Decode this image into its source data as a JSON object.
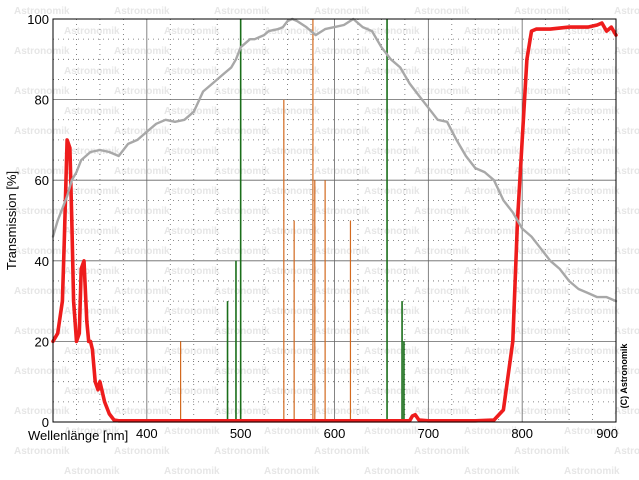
{
  "chart_data": {
    "type": "line",
    "title": "",
    "xlabel": "Wellenlänge [nm]",
    "ylabel": "Transmission [%]",
    "xlim": [
      300,
      900
    ],
    "ylim": [
      0,
      100
    ],
    "x_ticks": [
      400,
      500,
      600,
      700,
      800,
      900
    ],
    "y_ticks": [
      0,
      20,
      40,
      60,
      80,
      100
    ],
    "grid": true,
    "copyright": "(C) Astronomik",
    "watermark": "Astronomik",
    "colors": {
      "filter": "#ee1c1c",
      "sensor": "#a8a8a8",
      "green_lines": "#1a6e1a",
      "orange_lines": "#d2691e",
      "grid": "#666666"
    },
    "series": [
      {
        "key": "filter",
        "x": [
          300,
          305,
          310,
          312,
          315,
          318,
          320,
          322,
          325,
          328,
          330,
          333,
          336,
          338,
          340,
          342,
          345,
          348,
          350,
          355,
          360,
          365,
          370,
          375,
          378,
          380,
          382,
          385,
          388,
          390,
          392,
          395,
          400,
          450,
          500,
          550,
          600,
          650,
          680,
          683,
          686,
          690,
          700,
          750,
          770,
          780,
          790,
          795,
          800,
          805,
          810,
          815,
          820,
          830,
          850,
          870,
          880,
          885,
          890,
          895,
          900
        ],
        "y": [
          20,
          22,
          30,
          45,
          70,
          68,
          50,
          30,
          20,
          22,
          38,
          40,
          25,
          20,
          20,
          18,
          10,
          8,
          10,
          5,
          2,
          0.5,
          0.3,
          0.3,
          0.3,
          0.3,
          0.3,
          0.3,
          0.3,
          0.3,
          0.3,
          0.3,
          0.3,
          0.3,
          0.3,
          0.3,
          0.3,
          0.3,
          0.3,
          1.5,
          1.8,
          0.5,
          0.3,
          0.3,
          0.5,
          3,
          20,
          50,
          70,
          90,
          97,
          97.5,
          97.5,
          97.5,
          98,
          98,
          98.5,
          99,
          97,
          98,
          96
        ]
      },
      {
        "key": "sensor",
        "x": [
          300,
          305,
          310,
          315,
          320,
          325,
          330,
          340,
          350,
          360,
          370,
          380,
          390,
          400,
          410,
          420,
          430,
          440,
          450,
          460,
          470,
          480,
          490,
          495,
          500,
          505,
          510,
          515,
          520,
          525,
          530,
          540,
          545,
          550,
          555,
          560,
          570,
          580,
          590,
          600,
          610,
          620,
          630,
          640,
          650,
          660,
          670,
          680,
          690,
          700,
          710,
          720,
          730,
          740,
          750,
          760,
          770,
          780,
          790,
          800,
          810,
          820,
          830,
          840,
          850,
          860,
          870,
          880,
          890,
          900
        ],
        "y": [
          46,
          50,
          53,
          56,
          60,
          62,
          65,
          67,
          67.5,
          67,
          66,
          69,
          70,
          72,
          74,
          75,
          74.5,
          75,
          77,
          82,
          84,
          86,
          88,
          90,
          93,
          94,
          95,
          95,
          95.5,
          96,
          97,
          97.5,
          98,
          99.5,
          100,
          99.5,
          98,
          96,
          97.5,
          98,
          98.5,
          100,
          98,
          97,
          93,
          90,
          88,
          84,
          81,
          78,
          75,
          74.5,
          70,
          66,
          63,
          62,
          60,
          55,
          52,
          48,
          46,
          43,
          40,
          38,
          35,
          33,
          32,
          31,
          31,
          30
        ]
      }
    ],
    "spectral_lines": [
      {
        "key": "green_lines",
        "x": 486,
        "y": 30
      },
      {
        "key": "green_lines",
        "x": 495,
        "y": 40
      },
      {
        "key": "green_lines",
        "x": 500,
        "y": 100
      },
      {
        "key": "green_lines",
        "x": 656,
        "y": 100
      },
      {
        "key": "green_lines",
        "x": 672,
        "y": 30
      },
      {
        "key": "green_lines",
        "x": 674,
        "y": 20
      },
      {
        "key": "orange_lines",
        "x": 436,
        "y": 20
      },
      {
        "key": "orange_lines",
        "x": 546,
        "y": 80
      },
      {
        "key": "orange_lines",
        "x": 557,
        "y": 50
      },
      {
        "key": "orange_lines",
        "x": 577,
        "y": 100
      },
      {
        "key": "orange_lines",
        "x": 579,
        "y": 60
      },
      {
        "key": "orange_lines",
        "x": 590,
        "y": 60
      },
      {
        "key": "orange_lines",
        "x": 617,
        "y": 50
      }
    ]
  }
}
